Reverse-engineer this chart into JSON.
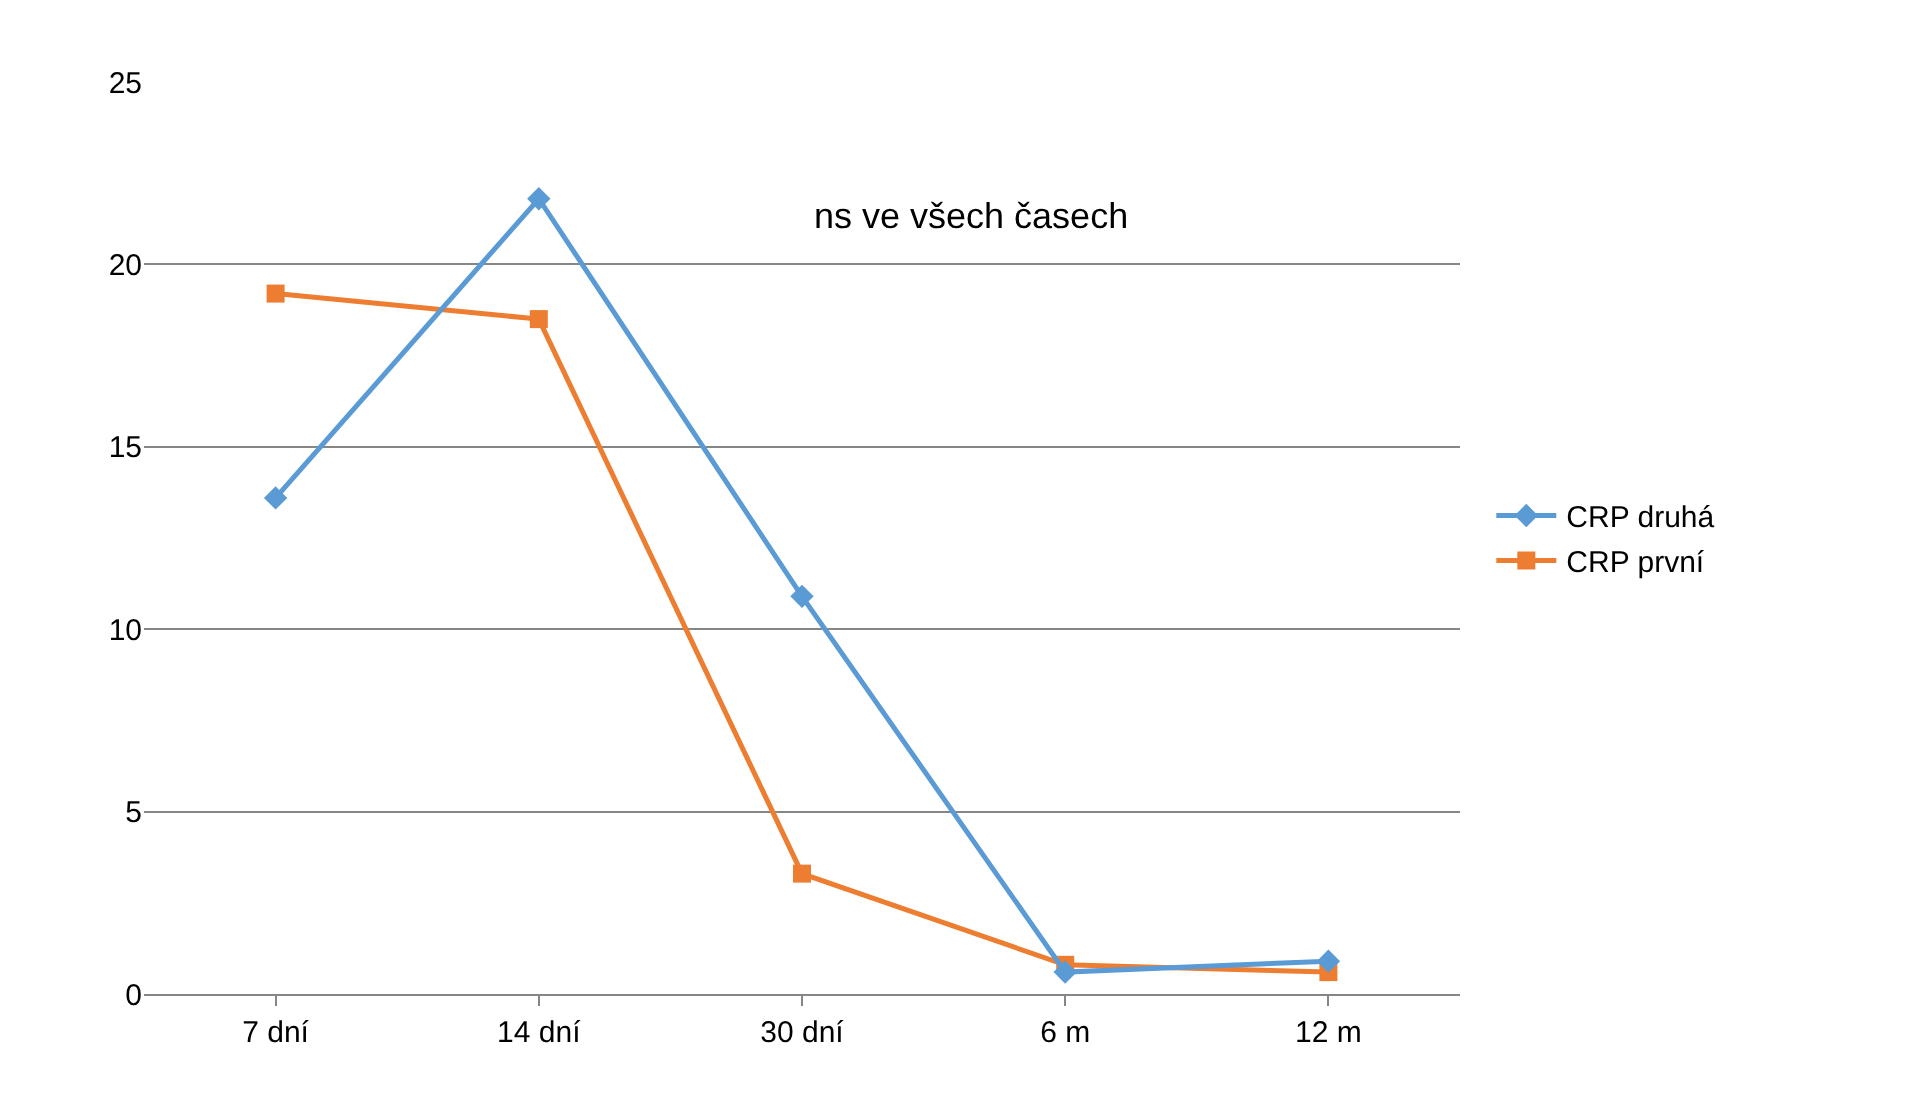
{
  "chart_data": {
    "type": "line",
    "categories": [
      "7 dní",
      "14 dní",
      "30 dní",
      "6 m",
      "12 m"
    ],
    "series": [
      {
        "name": "CRP druhá",
        "color": "#5b9bd5",
        "marker": "diamond",
        "values": [
          13.6,
          21.8,
          10.9,
          0.6,
          0.9
        ]
      },
      {
        "name": "CRP první",
        "color": "#ed7d31",
        "marker": "square",
        "values": [
          19.2,
          18.5,
          3.3,
          0.8,
          0.6
        ]
      }
    ],
    "annotations": [
      "ns ve všech časech"
    ],
    "ylim": [
      0,
      25
    ],
    "yticks": [
      0,
      5,
      10,
      15,
      20,
      25
    ],
    "grid": "y",
    "legend": "right",
    "line_style": "solid"
  }
}
